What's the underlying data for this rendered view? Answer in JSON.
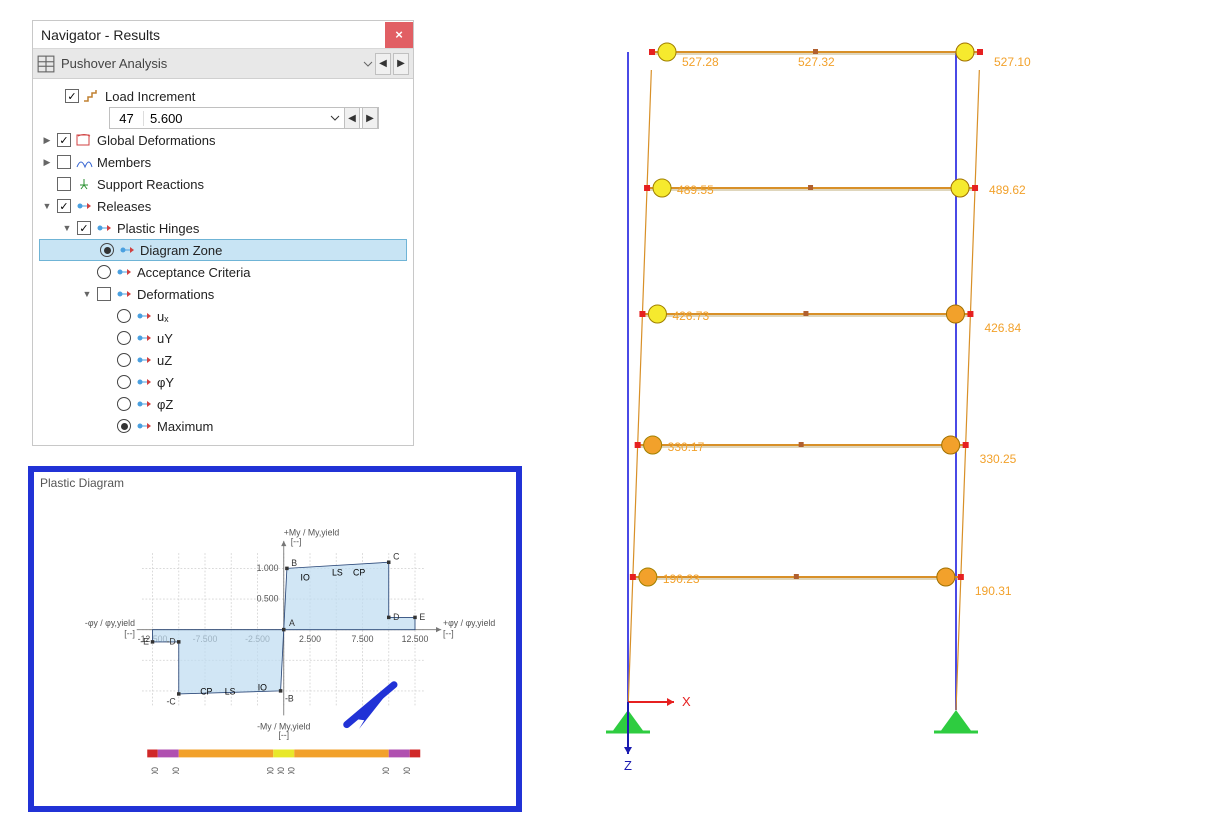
{
  "panel": {
    "title": "Navigator - Results",
    "close": "×",
    "analysis_label": "Pushover Analysis",
    "load_increment_label": "Load Increment",
    "load_increment_n": "47",
    "load_increment_v": "5.600",
    "tree": {
      "global_def": "Global Deformations",
      "members": "Members",
      "support": "Support Reactions",
      "releases": "Releases",
      "plastic_hinges": "Plastic Hinges",
      "diagram_zone": "Diagram Zone",
      "acceptance": "Acceptance Criteria",
      "deformations": "Deformations",
      "ux": "uₓ",
      "uy": "uY",
      "uz": "uZ",
      "phiy": "φY",
      "phiz": "φZ",
      "maximum": "Maximum"
    }
  },
  "diagram": {
    "title": "Plastic Diagram",
    "y_pos_label": "+My / My,yield",
    "y_neg_label": "-My / My,yield",
    "x_pos_label": "+φy / φy,yield",
    "x_neg_label": "-φy / φy,yield",
    "unit": "[--]",
    "x_ticks": [
      "-12.500",
      "-7.500",
      "-2.500",
      "2.500",
      "7.500",
      "12.500"
    ],
    "y_ticks_pos": [
      "0.500",
      "1.000"
    ],
    "y_ticks_neg": [
      "-1.00"
    ],
    "pts": {
      "A": "A",
      "B": "B",
      "C": "C",
      "D": "D",
      "E": "E",
      "nB": "-B",
      "nC": "-C",
      "nD": "-D",
      "nE": "-E",
      "IO": "IO",
      "LS": "LS",
      "CP": "CP"
    },
    "curve_fill": "#bedbf1",
    "curve_stroke": "#2d4a7a",
    "grid_color": "#d5d5d5",
    "axis_color": "#777",
    "arrow_color": "#2132d6",
    "zone_colors": [
      "#d02828",
      "#b050b0",
      "#f2a12b",
      "#e8e82a",
      "#f2a12b",
      "#b050b0",
      "#d02828"
    ],
    "zone_ticks": [
      "-12.000",
      "-10.000",
      "-1.000",
      "0.000",
      "1.000",
      "10.000",
      "12.000"
    ]
  },
  "frame": {
    "column_color": "#4a4ae6",
    "beam_color": "#d89028",
    "deformed_color": "#d89028",
    "hinge_node_color": "#e62020",
    "hinge_yellow": "#f6ea2e",
    "hinge_orange": "#f2a12b",
    "support_color": "#2ecc40",
    "axis_x_color": "#e62020",
    "axis_z_color": "#1a1ab0",
    "labels": {
      "l1a": "527.28",
      "l1b": "527.32",
      "l1c": "527.10",
      "l2a": "489.55",
      "l2b": "489.62",
      "l3a": "426.73",
      "l3b": "426.84",
      "l4a": "330.17",
      "l4b": "330.25",
      "l5a": "190.23",
      "l5b": "190.31",
      "axisX": "X",
      "axisZ": "Z"
    }
  }
}
